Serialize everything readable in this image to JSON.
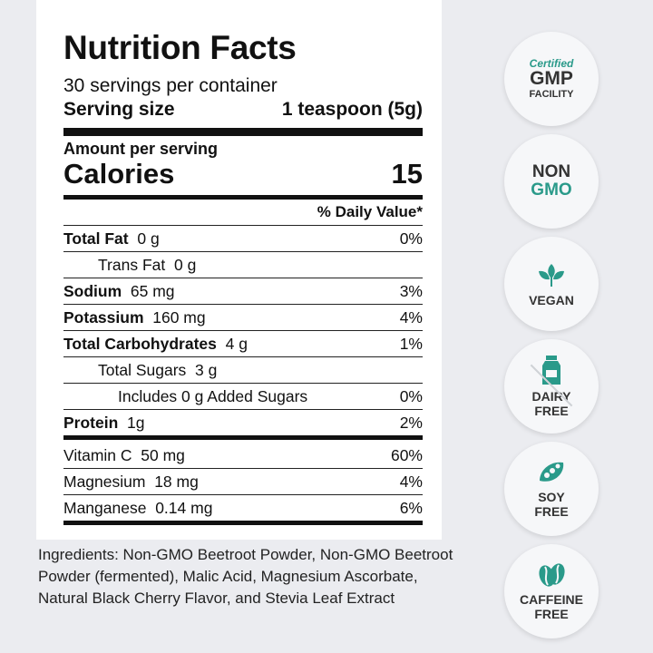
{
  "label": {
    "title": "Nutrition Facts",
    "servings": "30 servings per container",
    "serving_size_label": "Serving size",
    "serving_size_value": "1 teaspoon (5g)",
    "amount_per_serving": "Amount per serving",
    "calories_label": "Calories",
    "calories_value": "15",
    "dv_header": "% Daily Value*",
    "rows": [
      {
        "name": "Total Fat",
        "amount": "0 g",
        "dv": "0%"
      },
      {
        "name": "Trans Fat",
        "amount": "0 g",
        "dv": ""
      },
      {
        "name": "Sodium",
        "amount": "65 mg",
        "dv": "3%"
      },
      {
        "name": "Potassium",
        "amount": "160 mg",
        "dv": "4%"
      },
      {
        "name": "Total Carbohydrates",
        "amount": "4 g",
        "dv": "1%"
      },
      {
        "name": "Total Sugars",
        "amount": "3 g",
        "dv": ""
      },
      {
        "name": "Includes 0 g Added Sugars",
        "amount": "",
        "dv": "0%"
      },
      {
        "name": "Protein",
        "amount": "1g",
        "dv": "2%"
      }
    ],
    "vitamins": [
      {
        "name": "Vitamin C",
        "amount": "50 mg",
        "dv": "60%"
      },
      {
        "name": "Magnesium",
        "amount": "18 mg",
        "dv": "4%"
      },
      {
        "name": "Manganese",
        "amount": "0.14 mg",
        "dv": "6%"
      }
    ]
  },
  "ingredients": "Ingredients: Non-GMO Beetroot Powder, Non-GMO Beetroot Powder (fermented), Malic Acid, Magnesium Ascorbate, Natural Black Cherry Flavor, and Stevia Leaf Extract",
  "badges": {
    "gmp": {
      "line1": "Certified",
      "line2": "GMP",
      "line3": "FACILITY"
    },
    "nongmo": {
      "line1": "NON",
      "line2": "GMO"
    },
    "vegan": {
      "label": "VEGAN",
      "icon": "leaf-icon"
    },
    "dairy": {
      "line1": "DAIRY",
      "line2": "FREE",
      "icon": "milk-carton-icon"
    },
    "soy": {
      "line1": "SOY",
      "line2": "FREE",
      "icon": "soybean-icon"
    },
    "caffeine": {
      "line1": "CAFFEINE",
      "line2": "FREE",
      "icon": "coffee-bean-icon"
    }
  },
  "colors": {
    "accent": "#2a9a8a",
    "background": "#ebecf0",
    "text": "#111111"
  }
}
